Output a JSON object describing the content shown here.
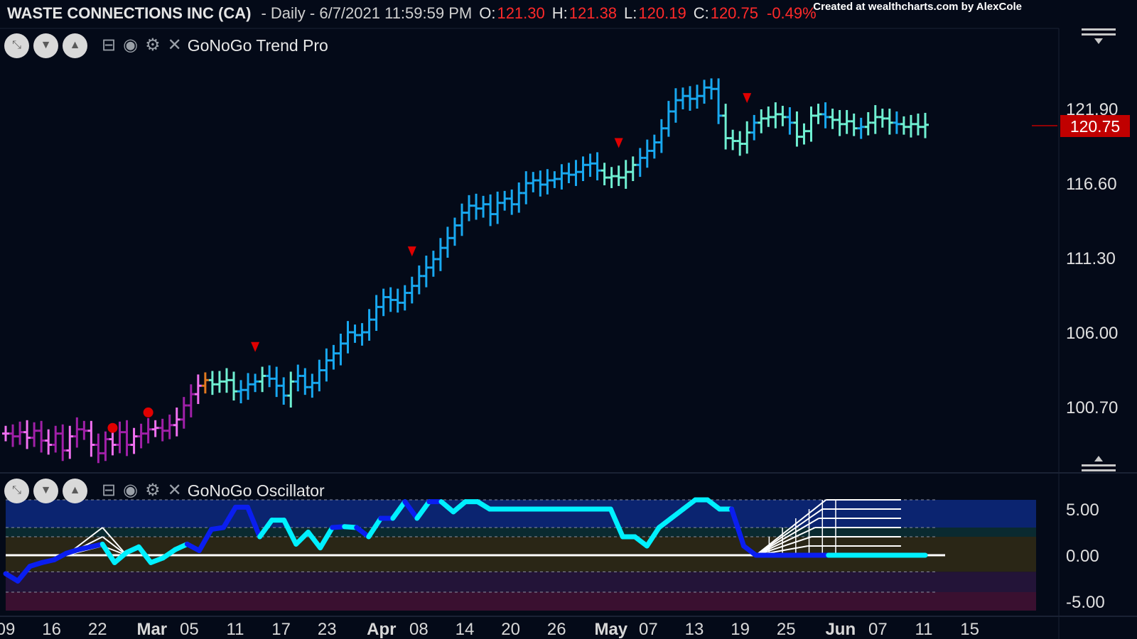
{
  "header": {
    "symbol": "WASTE CONNECTIONS INC (CA)",
    "meta": "- Daily - 6/7/2021 11:59:59 PM",
    "o_label": "O:",
    "o_value": "121.30",
    "h_label": "H:",
    "h_value": "121.38",
    "l_label": "L:",
    "l_value": "120.19",
    "c_label": "C:",
    "c_value": "120.75",
    "change": "-0.49%"
  },
  "watermark": "Created at wealthcharts.com by AlexCole",
  "price_panel": {
    "indicator": "GoNoGo Trend Pro",
    "last_price_label": "120.75"
  },
  "osc_panel": {
    "indicator": "GoNoGo Oscillator"
  },
  "icons": [
    "expand-icon",
    "collapse-down-icon",
    "collapse-up-icon",
    "minimize-icon",
    "eye-icon",
    "gear-icon",
    "close-icon",
    "menu-lines-icon"
  ],
  "colors": {
    "background": "#040a18",
    "strong_go": "#18a8f0",
    "weak_go": "#6ff0d2",
    "nogo": "#a020a8",
    "weak_nogo": "#f070f0",
    "neutral": "#e07820",
    "arrow": "#e00000",
    "osc_go": "#0a1ef0",
    "osc_cyan": "#00f0ff",
    "last_price_bg": "#c00000"
  },
  "chart_data": [
    {
      "type": "ohlc",
      "title": "WASTE CONNECTIONS INC (CA)",
      "y_ticks": [
        "121.90",
        "116.60",
        "111.30",
        "106.00",
        "100.70"
      ],
      "ylim": [
        95.5,
        126.0
      ],
      "x_ticks": [
        "09",
        "16",
        "22",
        "Mar",
        "05",
        "11",
        "17",
        "23",
        "Apr",
        "08",
        "14",
        "20",
        "26",
        "May",
        "07",
        "13",
        "19",
        "25",
        "Jun",
        "07",
        "11",
        "15"
      ],
      "last_price": 120.75,
      "series_closes": [
        98.8,
        98.6,
        98.9,
        98.5,
        99.0,
        98.3,
        98.0,
        98.8,
        97.6,
        98.6,
        99.1,
        99.0,
        98.0,
        97.4,
        98.4,
        98.0,
        98.9,
        98.0,
        98.6,
        98.8,
        99.1,
        99.2,
        99.0,
        99.4,
        99.8,
        100.8,
        101.6,
        102.2,
        102.6,
        102.3,
        102.5,
        102.6,
        101.8,
        101.9,
        102.3,
        102.5,
        102.9,
        102.7,
        102.2,
        101.5,
        102.5,
        102.9,
        102.1,
        102.4,
        103.3,
        104.0,
        104.5,
        105.2,
        106.0,
        105.8,
        106.0,
        106.9,
        107.8,
        108.5,
        108.3,
        108.1,
        108.8,
        109.3,
        110.0,
        110.6,
        111.2,
        112.0,
        112.7,
        113.6,
        114.5,
        115.0,
        114.8,
        115.1,
        114.4,
        115.2,
        115.5,
        115.1,
        115.9,
        116.6,
        116.8,
        116.5,
        116.8,
        116.9,
        117.3,
        117.2,
        117.4,
        117.9,
        118.0,
        117.5,
        117.0,
        117.1,
        117.0,
        117.4,
        117.9,
        118.4,
        118.9,
        119.5,
        120.5,
        121.7,
        122.5,
        122.8,
        122.6,
        122.8,
        123.4,
        123.3,
        121.4,
        119.8,
        119.6,
        119.4,
        120.2,
        120.9,
        121.2,
        121.3,
        121.5,
        121.3,
        120.9,
        119.9,
        120.3,
        121.4,
        121.5,
        121.3,
        121.1,
        120.8,
        121.0,
        120.5,
        120.6,
        120.9,
        121.3,
        121.2,
        120.9,
        120.8,
        120.6,
        120.8,
        120.6,
        120.75
      ]
    },
    {
      "type": "line",
      "title": "GoNoGo Oscillator",
      "y_ticks": [
        "5.00",
        "0.00",
        "-5.00"
      ],
      "ylim": [
        -6.0,
        6.0
      ],
      "values": [
        -2.0,
        -2.8,
        -1.2,
        -0.8,
        -0.5,
        0.2,
        0.6,
        0.9,
        1.2,
        -0.8,
        0.3,
        0.9,
        -0.8,
        -0.3,
        0.6,
        1.2,
        0.5,
        2.8,
        3.0,
        5.2,
        5.2,
        2.0,
        3.8,
        3.8,
        1.2,
        2.5,
        0.8,
        3.0,
        3.1,
        3.0,
        2.0,
        4.0,
        4.0,
        5.8,
        4.0,
        5.8,
        5.8,
        4.7,
        5.8,
        5.8,
        5.0,
        5.0,
        5.0,
        5.0,
        5.0,
        5.0,
        5.0,
        5.0,
        5.0,
        5.0,
        5.0,
        2.0,
        2.0,
        1.0,
        3.0,
        4.0,
        5.0,
        6.0,
        6.0,
        5.0,
        5.0,
        1.0,
        0.0,
        0.0,
        0.0,
        0.0,
        0.0,
        0.0,
        0.0,
        0.0,
        0.0,
        0.0,
        0.0,
        0.0,
        0.0,
        0.0,
        0.0
      ]
    }
  ]
}
